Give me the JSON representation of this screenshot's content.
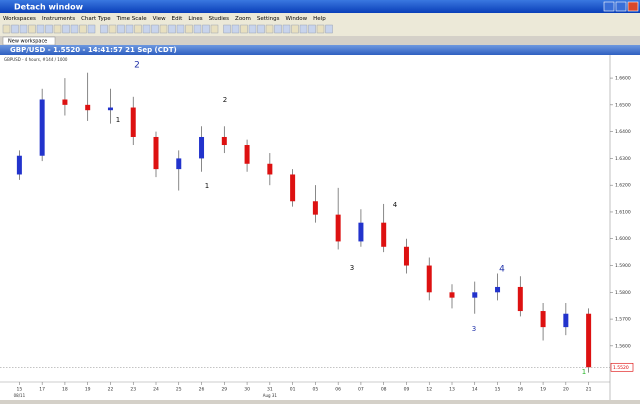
{
  "window": {
    "title": "Detach window",
    "menu": [
      "Workspaces",
      "Instruments",
      "Chart Type",
      "Time Scale",
      "View",
      "Edit",
      "Lines",
      "Studies",
      "Zoom",
      "Settings",
      "Window",
      "Help"
    ],
    "tab": "New workspace"
  },
  "chart_data": {
    "type": "candlestick",
    "title": "GBP/USD - 1.5520 - 14:41:57  21 Sep (CDT)",
    "subtitle": "GBPUSD - 4 hours, #144 / 1000",
    "categories": [
      "15",
      "17",
      "18",
      "19",
      "22",
      "23",
      "24",
      "25",
      "26",
      "29",
      "30",
      "31",
      "01",
      "05",
      "06",
      "07",
      "08",
      "09",
      "12",
      "13",
      "14",
      "15",
      "16",
      "19",
      "20",
      "21"
    ],
    "date_notes": [
      "08/11",
      "Aug 31"
    ],
    "open": [
      1.624,
      1.631,
      1.652,
      1.65,
      1.648,
      1.649,
      1.638,
      1.626,
      1.63,
      1.638,
      1.635,
      1.628,
      1.624,
      1.614,
      1.609,
      1.599,
      1.606,
      1.597,
      1.59,
      1.58,
      1.578,
      1.58,
      1.582,
      1.573,
      1.567,
      1.572
    ],
    "high": [
      1.633,
      1.656,
      1.66,
      1.662,
      1.656,
      1.653,
      1.64,
      1.633,
      1.642,
      1.642,
      1.637,
      1.632,
      1.626,
      1.62,
      1.619,
      1.611,
      1.613,
      1.6,
      1.593,
      1.583,
      1.584,
      1.587,
      1.586,
      1.576,
      1.576,
      1.574
    ],
    "low": [
      1.622,
      1.629,
      1.646,
      1.644,
      1.643,
      1.635,
      1.623,
      1.618,
      1.625,
      1.632,
      1.625,
      1.62,
      1.612,
      1.606,
      1.596,
      1.597,
      1.595,
      1.587,
      1.577,
      1.574,
      1.572,
      1.577,
      1.571,
      1.562,
      1.564,
      1.55
    ],
    "close": [
      1.631,
      1.652,
      1.65,
      1.648,
      1.649,
      1.638,
      1.626,
      1.63,
      1.638,
      1.635,
      1.628,
      1.624,
      1.614,
      1.609,
      1.599,
      1.606,
      1.597,
      1.59,
      1.58,
      1.578,
      1.58,
      1.582,
      1.573,
      1.567,
      1.572,
      1.552
    ],
    "up_color": "#2233cc",
    "down_color": "#dd1111",
    "last_price": {
      "value": 1.552,
      "label": "1.5520"
    },
    "annotations": [
      "2",
      "1",
      "2",
      "1",
      "4",
      "3",
      "4",
      "3",
      "1"
    ],
    "ylim": [
      1.548,
      1.666
    ],
    "yticks": [
      {
        "value": 1.56,
        "label": "1.5600"
      },
      {
        "value": 1.57,
        "label": "1.5700"
      },
      {
        "value": 1.58,
        "label": "1.5800"
      },
      {
        "value": 1.59,
        "label": "1.5900"
      },
      {
        "value": 1.6,
        "label": "1.6000"
      },
      {
        "value": 1.61,
        "label": "1.6100"
      },
      {
        "value": 1.62,
        "label": "1.6200"
      },
      {
        "value": 1.63,
        "label": "1.6300"
      },
      {
        "value": 1.64,
        "label": "1.6400"
      },
      {
        "value": 1.65,
        "label": "1.6500"
      },
      {
        "value": 1.66,
        "label": "1.6600"
      }
    ],
    "grid": false
  }
}
